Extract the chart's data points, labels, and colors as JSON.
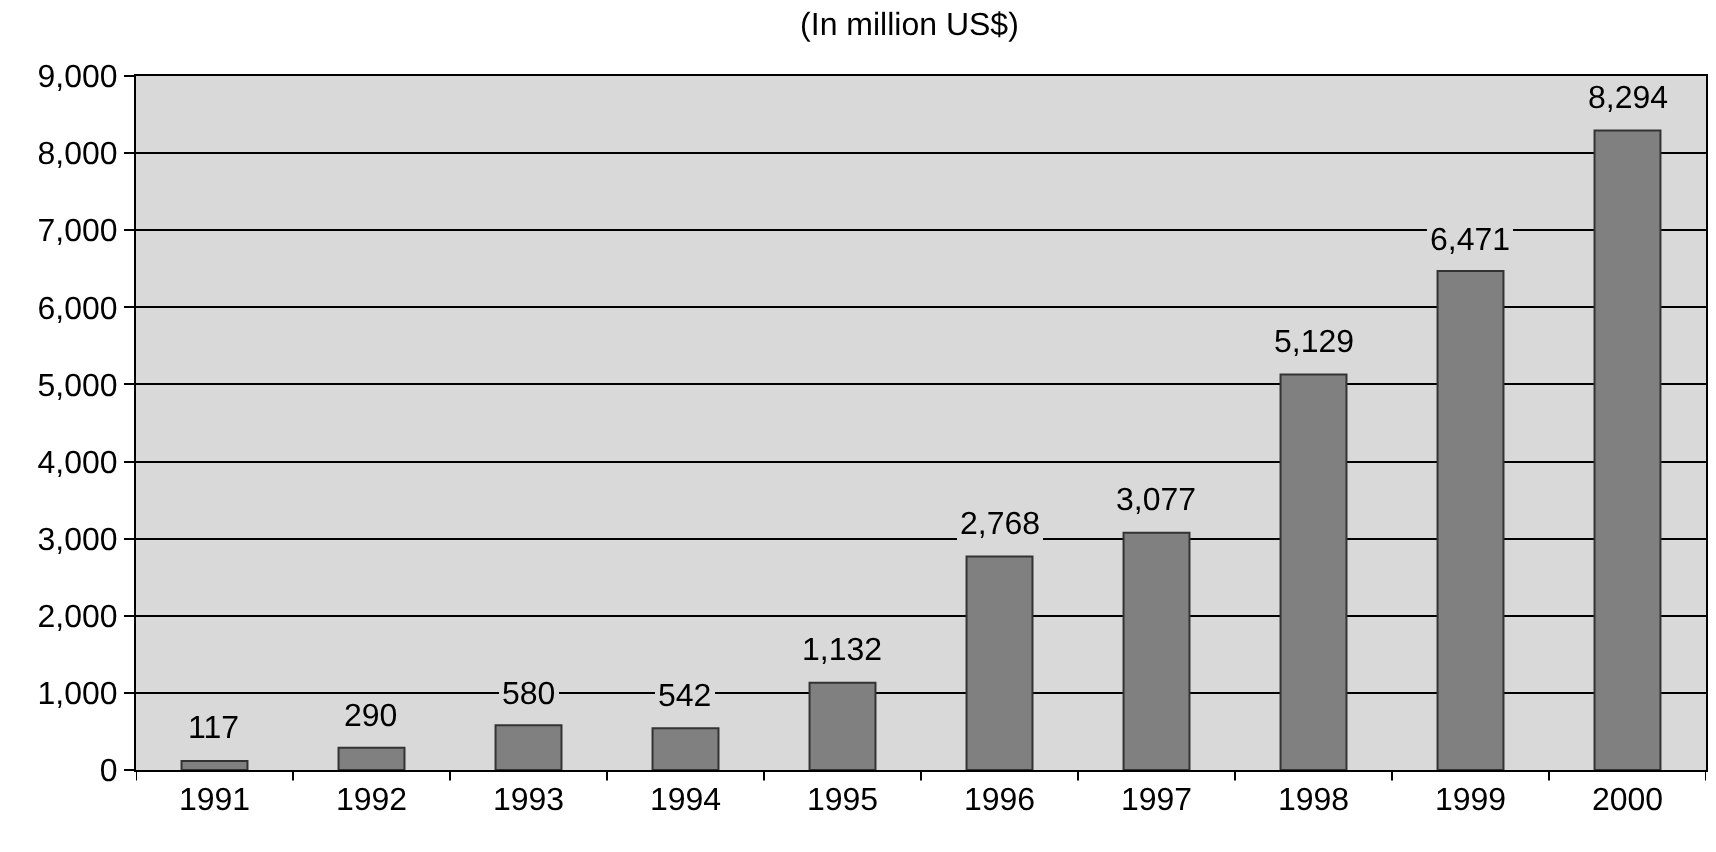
{
  "chart_data": {
    "type": "bar",
    "title": "(In million US$)",
    "categories": [
      "1991",
      "1992",
      "1993",
      "1994",
      "1995",
      "1996",
      "1997",
      "1998",
      "1999",
      "2000"
    ],
    "values": [
      117,
      290,
      580,
      542,
      1132,
      2768,
      3077,
      5129,
      6471,
      8294
    ],
    "value_labels": [
      "117",
      "290",
      "580",
      "542",
      "1,132",
      "2,768",
      "3,077",
      "5,129",
      "6,471",
      "8,294"
    ],
    "color": "#808080",
    "ylim": [
      0,
      9000
    ],
    "yticks": [
      {
        "value": 0,
        "label": "0"
      },
      {
        "value": 1000,
        "label": "1,000"
      },
      {
        "value": 2000,
        "label": "2,000"
      },
      {
        "value": 3000,
        "label": "3,000"
      },
      {
        "value": 4000,
        "label": "4,000"
      },
      {
        "value": 5000,
        "label": "5,000"
      },
      {
        "value": 6000,
        "label": "6,000"
      },
      {
        "value": 7000,
        "label": "7,000"
      },
      {
        "value": 8000,
        "label": "8,000"
      },
      {
        "value": 9000,
        "label": "9,000"
      }
    ],
    "grid": "y",
    "legend": false
  }
}
